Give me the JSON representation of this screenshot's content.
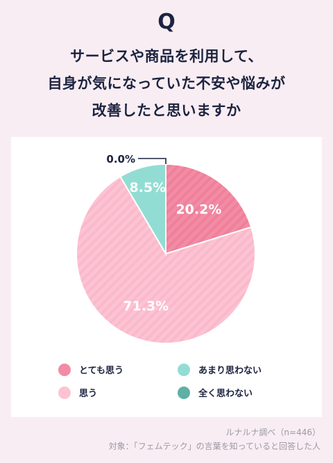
{
  "header": {
    "q_mark": "Q",
    "question_lines": [
      "サービスや商品を利用して、",
      "自身が気になっていた不安や悩みが",
      "改善したと思いますか"
    ]
  },
  "chart_data": {
    "type": "pie",
    "start": "12 o'clock",
    "direction": "clockwise",
    "slices": [
      {
        "label": "とても思う",
        "value": 20.2,
        "value_label": "20.2%",
        "color": "#f28ca5",
        "striped": true
      },
      {
        "label": "思う",
        "value": 71.3,
        "value_label": "71.3%",
        "color": "#fcc3d3",
        "striped": true
      },
      {
        "label": "あまり思わない",
        "value": 8.5,
        "value_label": "8.5%",
        "color": "#92ddd3",
        "striped": false
      },
      {
        "label": "全く思わない",
        "value": 0.0,
        "value_label": "0.0%",
        "color": "#5fb0a4",
        "striped": false
      }
    ],
    "legend": {
      "placement": "bottom",
      "items": [
        {
          "label": "とても思う",
          "color": "#f28ca5"
        },
        {
          "label": "あまり思わない",
          "color": "#92ddd3"
        },
        {
          "label": "思う",
          "color": "#fcc3d3"
        },
        {
          "label": "全く思わない",
          "color": "#5fb0a4"
        }
      ]
    }
  },
  "footer": {
    "source": "ルナルナ調べ（n=446）",
    "target": "対象：「フェムテック」の言葉を知っていると回答した人"
  }
}
